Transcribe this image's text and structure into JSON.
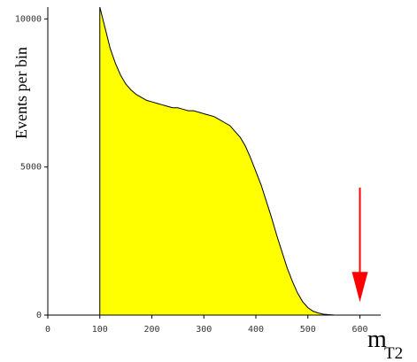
{
  "chart_data": {
    "type": "area",
    "xlabel": "m",
    "xlabel_subscript": "T2",
    "ylabel": "Events per bin",
    "xlim": [
      0,
      640
    ],
    "ylim": [
      0,
      10400
    ],
    "x_ticks": [
      "0",
      "100",
      "200",
      "300",
      "400",
      "500",
      "600"
    ],
    "y_ticks": [
      "0",
      "5000",
      "10000"
    ],
    "fill_color": "#ffff00",
    "line_color": "#000000",
    "arrow_color": "#ff0000",
    "arrow": {
      "x": 600,
      "y_from": 4300,
      "y_to": 500
    },
    "series": [
      {
        "x": [
          100,
          110,
          120,
          130,
          140,
          150,
          160,
          170,
          180,
          190,
          200,
          210,
          220,
          230,
          240,
          250,
          260,
          270,
          280,
          290,
          300,
          310,
          320,
          330,
          340,
          350,
          360,
          370,
          380,
          390,
          400,
          410,
          420,
          430,
          440,
          450,
          460,
          470,
          480,
          490,
          500,
          510,
          520,
          530,
          540,
          550,
          560,
          570,
          580,
          590,
          600
        ],
        "values": [
          10400,
          9700,
          9000,
          8500,
          8100,
          7800,
          7600,
          7450,
          7350,
          7250,
          7200,
          7150,
          7100,
          7050,
          7000,
          7000,
          6950,
          6900,
          6900,
          6850,
          6800,
          6750,
          6700,
          6600,
          6500,
          6400,
          6200,
          6000,
          5700,
          5300,
          4850,
          4400,
          3850,
          3300,
          2700,
          2150,
          1600,
          1150,
          750,
          450,
          250,
          130,
          70,
          30,
          15,
          5,
          0,
          0,
          0,
          0,
          0
        ]
      }
    ]
  }
}
